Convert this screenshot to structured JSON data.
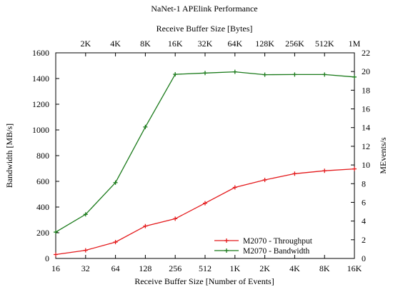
{
  "chart_data": {
    "type": "line",
    "title": "NaNet-1 APElink Performance",
    "xlabel": "Receive Buffer Size [Number of Events]",
    "x2label": "Receive Buffer Size [Bytes]",
    "ylabel": "Bandwidth [MB/s]",
    "y2label": "MEvents/s",
    "categories": [
      "16",
      "32",
      "64",
      "128",
      "256",
      "512",
      "1K",
      "2K",
      "4K",
      "8K",
      "16K"
    ],
    "top_categories": [
      "2K",
      "4K",
      "8K",
      "16K",
      "32K",
      "64K",
      "128K",
      "256K",
      "512K",
      "1M"
    ],
    "ylim": [
      0,
      1600
    ],
    "y_ticks": [
      0,
      200,
      400,
      600,
      800,
      1000,
      1200,
      1400,
      1600
    ],
    "y2lim": [
      0,
      22
    ],
    "y2_ticks": [
      0,
      2,
      4,
      6,
      8,
      10,
      12,
      14,
      16,
      18,
      20,
      22
    ],
    "legend_position": "bottom-right",
    "grid": false,
    "series": [
      {
        "name": "M2070 - Throughput",
        "color": "#e41a1c",
        "axis": "right",
        "values": [
          0.42,
          0.87,
          1.75,
          3.46,
          4.25,
          5.91,
          7.6,
          8.4,
          9.07,
          9.38,
          9.58
        ]
      },
      {
        "name": "M2070 - Bandwidth",
        "color": "#1a7a1a",
        "axis": "left",
        "values": [
          205,
          343,
          590,
          1023,
          1433,
          1443,
          1452,
          1430,
          1431,
          1431,
          1412
        ]
      }
    ]
  }
}
